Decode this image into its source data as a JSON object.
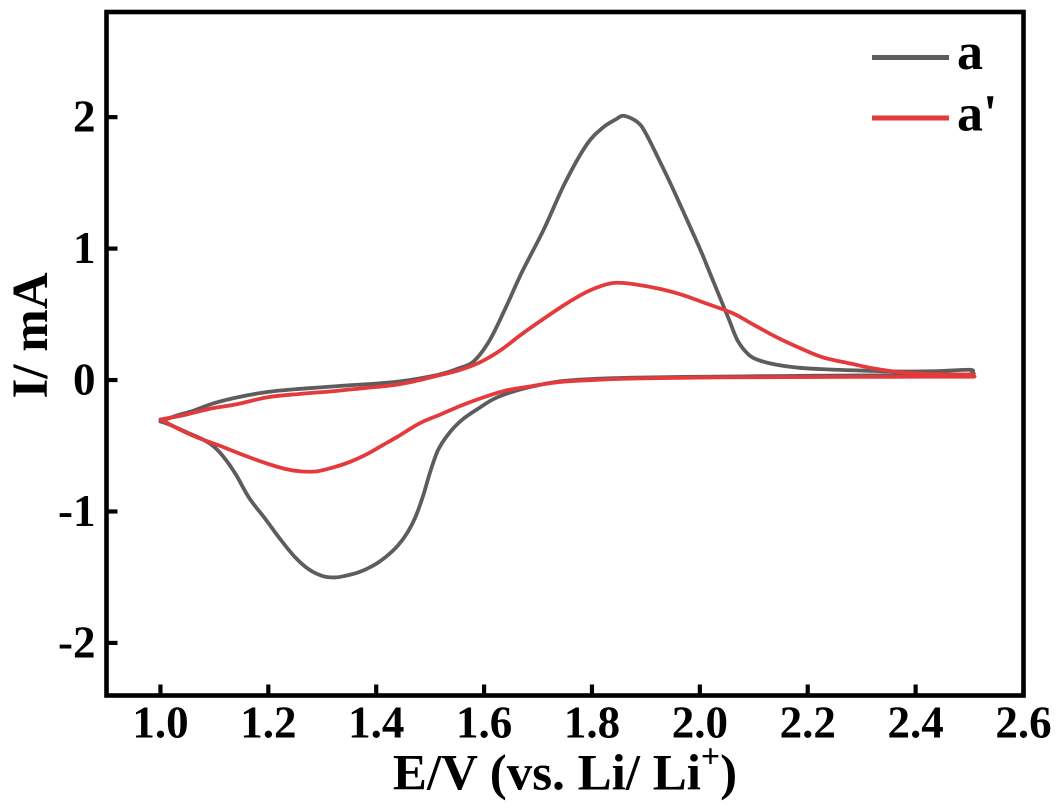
{
  "figure": {
    "background_color": "#ffffff",
    "frame_color": "#000000"
  },
  "chart_data": {
    "type": "line",
    "subtype": "cyclic-voltammogram",
    "title": "",
    "xlabel": "E/V (vs. Li/ Li+)",
    "xlabel_parts": {
      "prefix": "E/V (vs. Li/ Li",
      "sup": "+",
      "suffix": ")"
    },
    "ylabel": "I/ mA",
    "xlim": [
      0.9,
      2.6
    ],
    "ylim": [
      -2.4,
      2.8
    ],
    "xtick_values": [
      1.0,
      1.2,
      1.4,
      1.6,
      1.8,
      2.0,
      2.2,
      2.4,
      2.6
    ],
    "xtick_labels": [
      "1.0",
      "1.2",
      "1.4",
      "1.6",
      "1.8",
      "2.0",
      "2.2",
      "2.4",
      "2.6"
    ],
    "ytick_values": [
      -2,
      -1,
      0,
      1,
      2
    ],
    "ytick_labels": [
      "-2",
      "-1",
      "0",
      "1",
      "2"
    ],
    "grid": false,
    "tick_direction": "in",
    "legend": {
      "position": "upper right",
      "entries": [
        {
          "label": "a",
          "color": "#5d5d5d"
        },
        {
          "label": "a'",
          "color": "#e43a3c"
        }
      ]
    },
    "series": [
      {
        "name": "a",
        "color": "#5d5d5d",
        "description": "CV loop: anodic peak 2.0 mA at 1.86 V, cathodic peak -1.50 mA at 1.33 V, scan 1.0 to 2.5 V",
        "points": [
          [
            1.0,
            -0.315
          ],
          [
            1.03,
            -0.27
          ],
          [
            1.06,
            -0.235
          ],
          [
            1.1,
            -0.175
          ],
          [
            1.15,
            -0.125
          ],
          [
            1.2,
            -0.09
          ],
          [
            1.25,
            -0.07
          ],
          [
            1.3,
            -0.055
          ],
          [
            1.35,
            -0.04
          ],
          [
            1.4,
            -0.027
          ],
          [
            1.44,
            -0.012
          ],
          [
            1.48,
            0.012
          ],
          [
            1.52,
            0.045
          ],
          [
            1.55,
            0.085
          ],
          [
            1.58,
            0.14
          ],
          [
            1.61,
            0.3
          ],
          [
            1.64,
            0.55
          ],
          [
            1.67,
            0.82
          ],
          [
            1.71,
            1.14
          ],
          [
            1.75,
            1.5
          ],
          [
            1.79,
            1.79
          ],
          [
            1.82,
            1.92
          ],
          [
            1.845,
            1.985
          ],
          [
            1.86,
            2.01
          ],
          [
            1.885,
            1.96
          ],
          [
            1.9,
            1.875
          ],
          [
            1.925,
            1.67
          ],
          [
            1.945,
            1.5
          ],
          [
            1.965,
            1.32
          ],
          [
            2.0,
            1.0
          ],
          [
            2.02,
            0.8
          ],
          [
            2.04,
            0.6
          ],
          [
            2.055,
            0.45
          ],
          [
            2.07,
            0.3
          ],
          [
            2.09,
            0.195
          ],
          [
            2.11,
            0.15
          ],
          [
            2.14,
            0.118
          ],
          [
            2.18,
            0.095
          ],
          [
            2.23,
            0.082
          ],
          [
            2.3,
            0.072
          ],
          [
            2.38,
            0.065
          ],
          [
            2.44,
            0.068
          ],
          [
            2.5,
            0.078
          ],
          [
            2.505,
            0.06
          ],
          [
            2.5,
            0.042
          ],
          [
            2.42,
            0.038
          ],
          [
            2.32,
            0.035
          ],
          [
            2.2,
            0.032
          ],
          [
            2.08,
            0.028
          ],
          [
            1.97,
            0.024
          ],
          [
            1.88,
            0.018
          ],
          [
            1.8,
            0.008
          ],
          [
            1.74,
            -0.01
          ],
          [
            1.7,
            -0.04
          ],
          [
            1.66,
            -0.08
          ],
          [
            1.62,
            -0.14
          ],
          [
            1.59,
            -0.215
          ],
          [
            1.56,
            -0.3
          ],
          [
            1.535,
            -0.405
          ],
          [
            1.515,
            -0.53
          ],
          [
            1.5,
            -0.7
          ],
          [
            1.487,
            -0.88
          ],
          [
            1.473,
            -1.04
          ],
          [
            1.458,
            -1.16
          ],
          [
            1.44,
            -1.26
          ],
          [
            1.418,
            -1.345
          ],
          [
            1.395,
            -1.41
          ],
          [
            1.368,
            -1.462
          ],
          [
            1.34,
            -1.492
          ],
          [
            1.322,
            -1.502
          ],
          [
            1.3,
            -1.49
          ],
          [
            1.275,
            -1.44
          ],
          [
            1.25,
            -1.35
          ],
          [
            1.222,
            -1.21
          ],
          [
            1.195,
            -1.06
          ],
          [
            1.165,
            -0.9
          ],
          [
            1.14,
            -0.72
          ],
          [
            1.12,
            -0.6
          ],
          [
            1.1,
            -0.51
          ],
          [
            1.08,
            -0.455
          ],
          [
            1.05,
            -0.4
          ],
          [
            1.02,
            -0.345
          ],
          [
            1.0,
            -0.315
          ]
        ]
      },
      {
        "name": "a'",
        "color": "#e43a3c",
        "description": "CV loop: anodic peak 0.74 mA at 1.85 V, cathodic peak -0.70 mA at 1.29 V, scan 1.0 to 2.5 V",
        "points": [
          [
            1.0,
            -0.3
          ],
          [
            1.04,
            -0.27
          ],
          [
            1.09,
            -0.22
          ],
          [
            1.14,
            -0.185
          ],
          [
            1.2,
            -0.13
          ],
          [
            1.26,
            -0.105
          ],
          [
            1.32,
            -0.085
          ],
          [
            1.38,
            -0.06
          ],
          [
            1.43,
            -0.04
          ],
          [
            1.47,
            -0.01
          ],
          [
            1.51,
            0.03
          ],
          [
            1.55,
            0.07
          ],
          [
            1.59,
            0.13
          ],
          [
            1.63,
            0.225
          ],
          [
            1.67,
            0.35
          ],
          [
            1.71,
            0.465
          ],
          [
            1.75,
            0.575
          ],
          [
            1.79,
            0.67
          ],
          [
            1.82,
            0.72
          ],
          [
            1.845,
            0.74
          ],
          [
            1.88,
            0.728
          ],
          [
            1.93,
            0.69
          ],
          [
            1.97,
            0.645
          ],
          [
            2.01,
            0.585
          ],
          [
            2.06,
            0.51
          ],
          [
            2.1,
            0.42
          ],
          [
            2.145,
            0.32
          ],
          [
            2.19,
            0.235
          ],
          [
            2.23,
            0.17
          ],
          [
            2.28,
            0.125
          ],
          [
            2.32,
            0.09
          ],
          [
            2.37,
            0.06
          ],
          [
            2.43,
            0.045
          ],
          [
            2.5,
            0.042
          ],
          [
            2.505,
            0.032
          ],
          [
            2.5,
            0.025
          ],
          [
            2.4,
            0.025
          ],
          [
            2.28,
            0.024
          ],
          [
            2.16,
            0.022
          ],
          [
            2.04,
            0.02
          ],
          [
            1.94,
            0.016
          ],
          [
            1.86,
            0.01
          ],
          [
            1.8,
            0.0
          ],
          [
            1.74,
            -0.015
          ],
          [
            1.69,
            -0.045
          ],
          [
            1.64,
            -0.08
          ],
          [
            1.6,
            -0.13
          ],
          [
            1.56,
            -0.19
          ],
          [
            1.52,
            -0.26
          ],
          [
            1.48,
            -0.33
          ],
          [
            1.44,
            -0.43
          ],
          [
            1.41,
            -0.5
          ],
          [
            1.38,
            -0.57
          ],
          [
            1.35,
            -0.625
          ],
          [
            1.32,
            -0.665
          ],
          [
            1.29,
            -0.695
          ],
          [
            1.26,
            -0.695
          ],
          [
            1.23,
            -0.675
          ],
          [
            1.19,
            -0.625
          ],
          [
            1.15,
            -0.565
          ],
          [
            1.11,
            -0.5
          ],
          [
            1.07,
            -0.44
          ],
          [
            1.04,
            -0.385
          ],
          [
            1.0,
            -0.3
          ]
        ]
      }
    ]
  }
}
